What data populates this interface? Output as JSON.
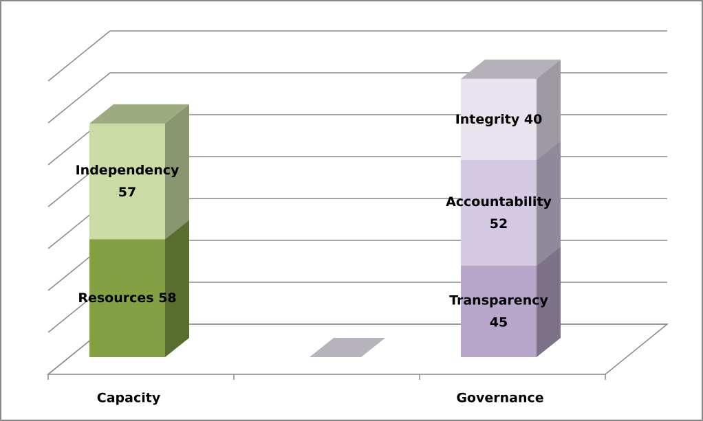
{
  "chart_data": {
    "type": "bar",
    "stacked": true,
    "three_d": true,
    "categories": [
      "Capacity",
      null,
      "Governance"
    ],
    "series": [
      {
        "name": "Resources",
        "color": "#83a043",
        "values": [
          58,
          null,
          null
        ]
      },
      {
        "name": "Independency",
        "color": "#cbdba6",
        "values": [
          57,
          null,
          null
        ]
      },
      {
        "name": "Transparency",
        "color": "#b9a7cb",
        "values": [
          null,
          null,
          45
        ]
      },
      {
        "name": "Accountability",
        "color": "#d4c9e2",
        "values": [
          null,
          null,
          52
        ]
      },
      {
        "name": "Integrity",
        "color": "#e8e3ef",
        "values": [
          null,
          null,
          40
        ]
      }
    ],
    "ylim": [
      0,
      140
    ],
    "yticks": [
      0,
      20,
      40,
      60,
      80,
      100,
      120,
      140
    ],
    "grid": true
  }
}
